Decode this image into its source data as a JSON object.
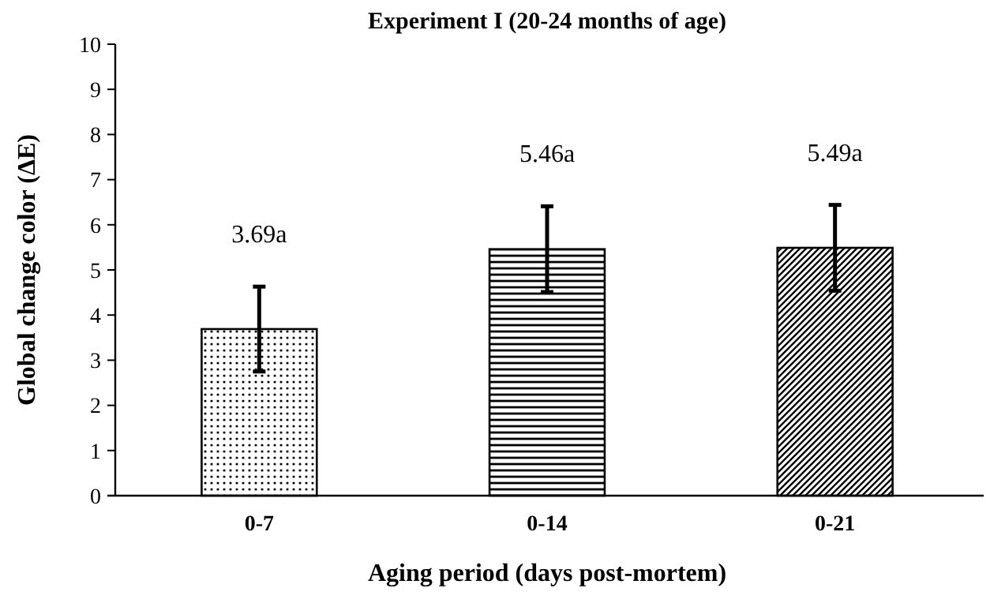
{
  "chart_data": {
    "type": "bar",
    "title": "Experiment I (20-24 months of age)",
    "xlabel": "Aging period (days post-mortem)",
    "ylabel": "Global change color (ΔE)",
    "categories": [
      "0-7",
      "0-14",
      "0-21"
    ],
    "values": [
      3.69,
      5.46,
      5.49
    ],
    "errors": [
      0.94,
      0.95,
      0.95
    ],
    "value_labels": [
      "3.69a",
      "5.46a",
      "5.49a"
    ],
    "ylim": [
      0,
      10
    ],
    "yticks": [
      0,
      1,
      2,
      3,
      4,
      5,
      6,
      7,
      8,
      9,
      10
    ],
    "grid": false
  }
}
